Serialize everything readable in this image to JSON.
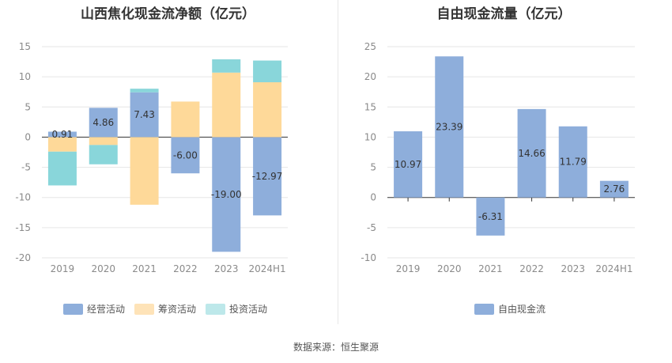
{
  "colors": {
    "operating": "#8eaedb",
    "financing": "#fed999",
    "investing": "#89d6da",
    "free": "#8eaedb",
    "grid": "#e6e6e6",
    "axis": "#333333"
  },
  "footer": "数据来源：恒生聚源",
  "chart_data": [
    {
      "type": "bar",
      "stacked": true,
      "title": "山西焦化现金流净额（亿元）",
      "categories": [
        "2019",
        "2020",
        "2021",
        "2022",
        "2023",
        "2024H1"
      ],
      "ylim": [
        -20,
        15
      ],
      "yticks": [
        15,
        10,
        5,
        0,
        -5,
        -10,
        -15,
        -20
      ],
      "grid": true,
      "legend_position": "bottom",
      "series": [
        {
          "name": "经营活动",
          "values": [
            0.91,
            4.86,
            7.43,
            -6.0,
            -19.0,
            -12.97
          ],
          "labels": [
            "0.91",
            "4.86",
            "7.43",
            "-6.00",
            "-19.00",
            "-12.97"
          ]
        },
        {
          "name": "筹资活动",
          "values": [
            -2.4,
            -1.3,
            -11.2,
            5.9,
            10.7,
            9.1
          ]
        },
        {
          "name": "投资活动",
          "values": [
            -5.6,
            -3.2,
            0.6,
            0.0,
            2.2,
            3.6
          ]
        }
      ]
    },
    {
      "type": "bar",
      "title": "自由现金流量（亿元）",
      "categories": [
        "2019",
        "2020",
        "2021",
        "2022",
        "2023",
        "2024H1"
      ],
      "ylim": [
        -10,
        25
      ],
      "yticks": [
        25,
        20,
        15,
        10,
        5,
        0,
        -5,
        -10
      ],
      "grid": true,
      "legend_position": "bottom",
      "series": [
        {
          "name": "自由现金流",
          "values": [
            10.97,
            23.39,
            -6.31,
            14.66,
            11.79,
            2.76
          ],
          "labels": [
            "10.97",
            "23.39",
            "-6.31",
            "14.66",
            "11.79",
            "2.76"
          ]
        }
      ]
    }
  ]
}
